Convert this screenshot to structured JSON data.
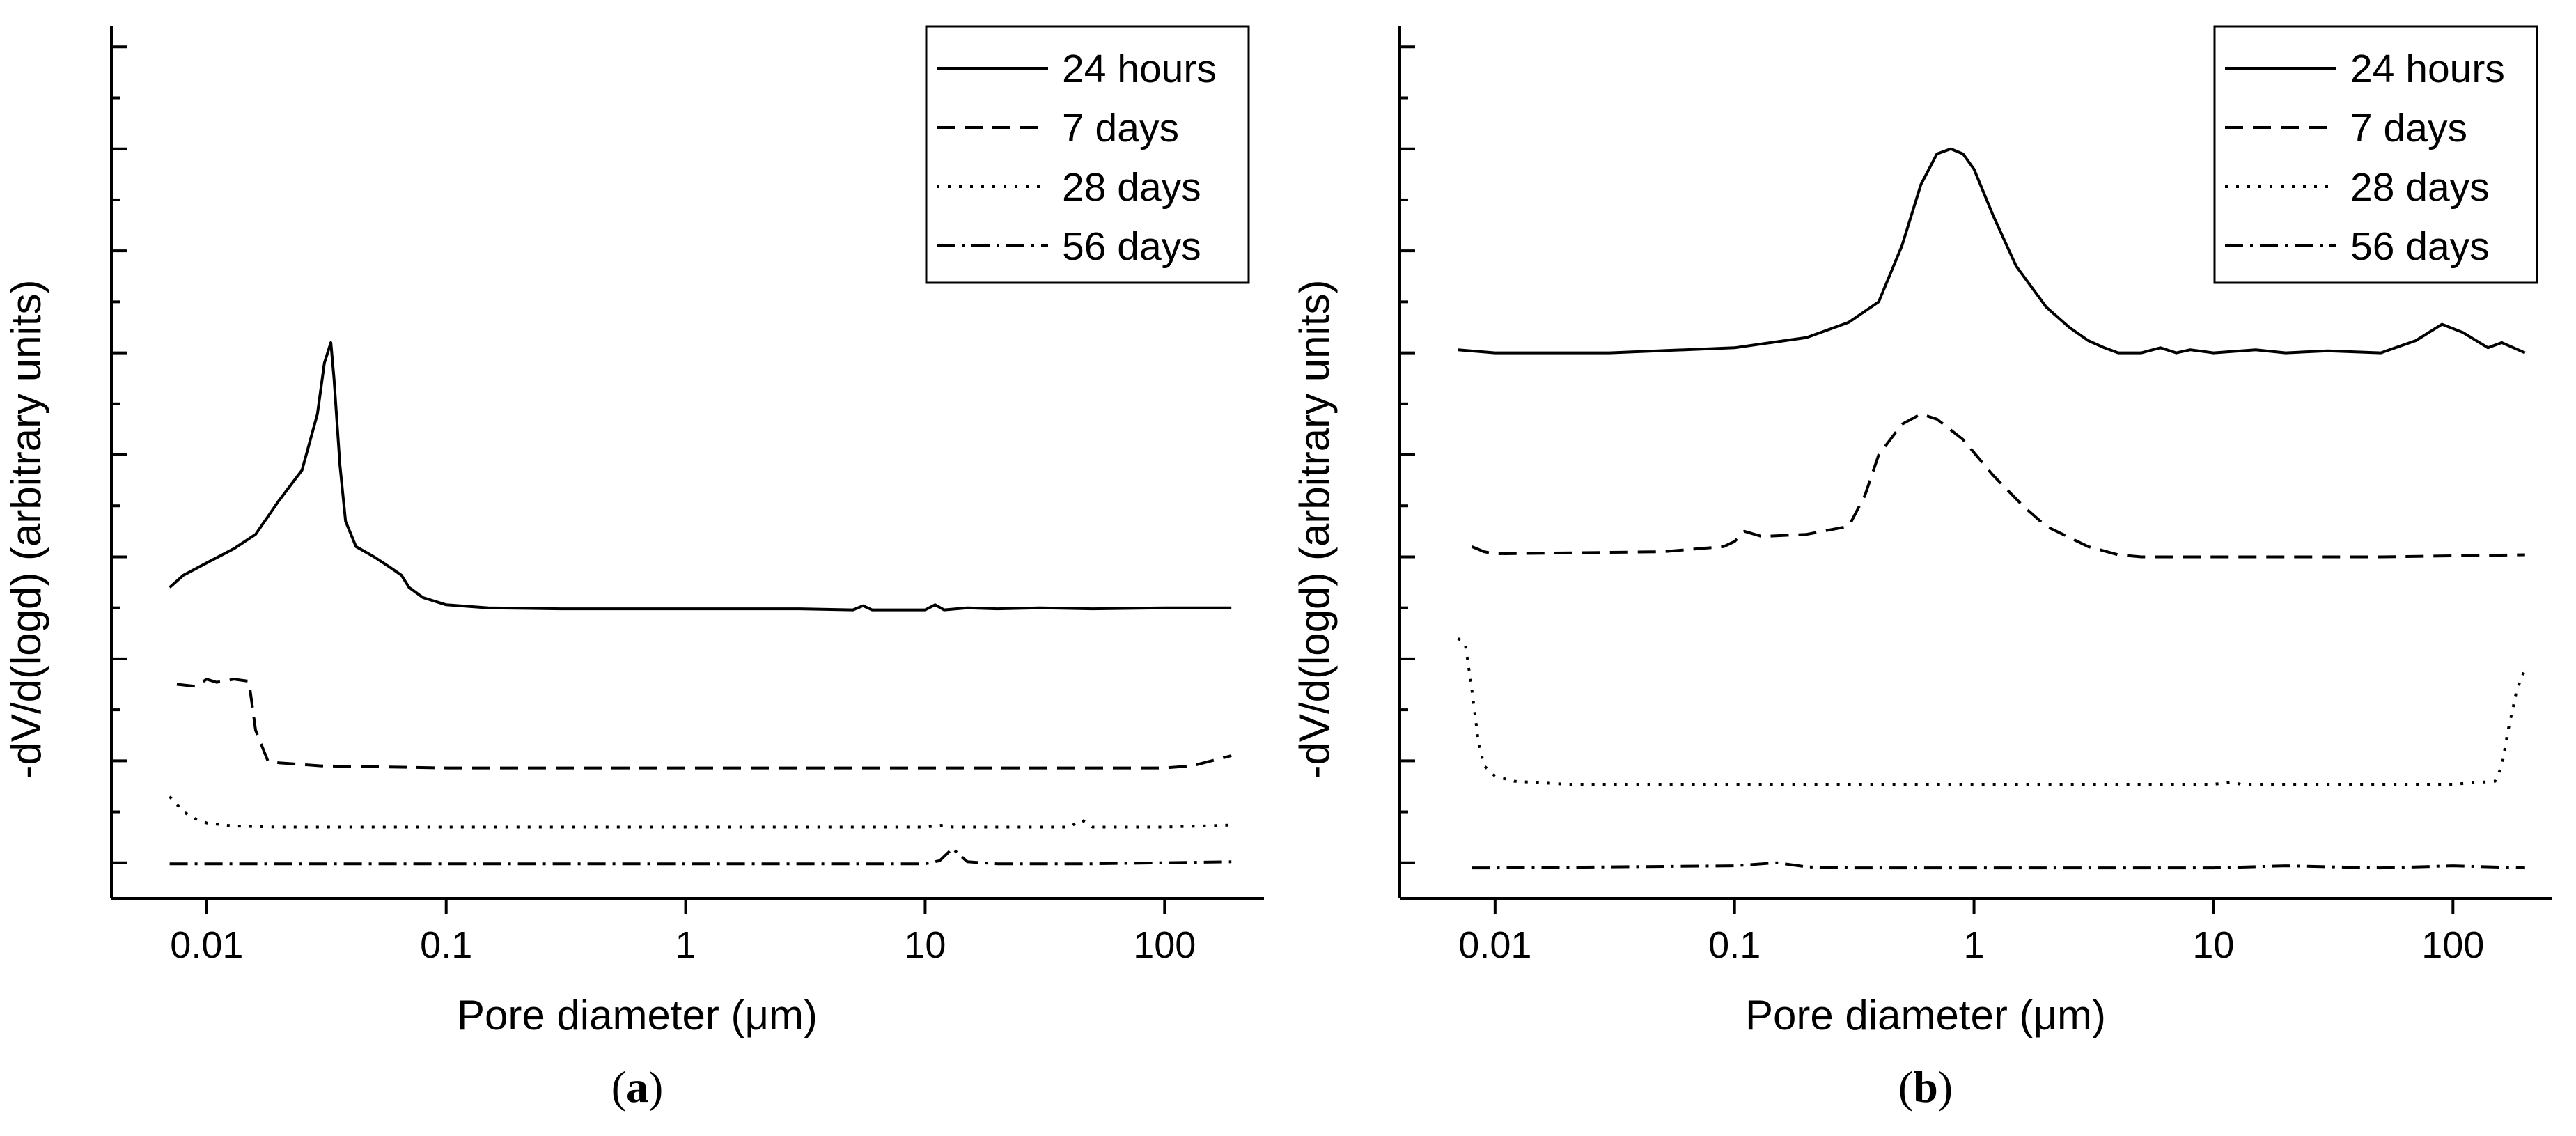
{
  "chart_data": [
    {
      "panel": "a",
      "panel_label_open": "(",
      "panel_label_letter": "a",
      "panel_label_close": ")",
      "type": "line",
      "xscale": "log",
      "xlim": [
        0.004,
        260
      ],
      "ylim": [
        -0.35,
        8.2
      ],
      "xlabel": "Pore diameter (μm)",
      "ylabel": "-dV/d(logd) (arbitrary units)",
      "x_tick_values": [
        0.01,
        0.1,
        1,
        10,
        100
      ],
      "x_tick_labels": [
        "0.01",
        "0.1",
        "1",
        "10",
        "100"
      ],
      "y_ticks": [
        0,
        1,
        2,
        3,
        4,
        5,
        6,
        7,
        8
      ],
      "legend_position": "top-right",
      "series": [
        {
          "name": "24 hours",
          "style": "solid",
          "x": [
            0.007,
            0.008,
            0.01,
            0.013,
            0.016,
            0.02,
            0.025,
            0.029,
            0.031,
            0.033,
            0.034,
            0.036,
            0.038,
            0.042,
            0.05,
            0.058,
            0.065,
            0.07,
            0.08,
            0.1,
            0.15,
            0.3,
            1,
            3,
            5,
            5.5,
            6,
            10,
            11,
            12,
            15,
            20,
            30,
            50,
            100,
            190
          ],
          "y": [
            2.7,
            2.82,
            2.94,
            3.08,
            3.22,
            3.55,
            3.85,
            4.4,
            4.9,
            5.1,
            4.75,
            3.9,
            3.35,
            3.1,
            3.0,
            2.9,
            2.82,
            2.7,
            2.6,
            2.53,
            2.5,
            2.49,
            2.49,
            2.49,
            2.48,
            2.52,
            2.48,
            2.48,
            2.53,
            2.48,
            2.5,
            2.49,
            2.5,
            2.49,
            2.5,
            2.5
          ]
        },
        {
          "name": "7 days",
          "style": "dashed",
          "x": [
            0.0075,
            0.009,
            0.01,
            0.011,
            0.013,
            0.015,
            0.016,
            0.018,
            0.02,
            0.03,
            0.1,
            1,
            10,
            100,
            130,
            190
          ],
          "y": [
            1.75,
            1.73,
            1.8,
            1.77,
            1.8,
            1.78,
            1.3,
            1.0,
            0.98,
            0.95,
            0.93,
            0.93,
            0.93,
            0.93,
            0.95,
            1.05
          ]
        },
        {
          "name": "28 days",
          "style": "dotted",
          "x": [
            0.007,
            0.008,
            0.009,
            0.01,
            0.013,
            0.02,
            0.1,
            1,
            10,
            12,
            13,
            20,
            40,
            45,
            50,
            100,
            190
          ],
          "y": [
            0.65,
            0.5,
            0.43,
            0.39,
            0.36,
            0.35,
            0.35,
            0.35,
            0.35,
            0.37,
            0.35,
            0.35,
            0.35,
            0.42,
            0.35,
            0.35,
            0.37
          ]
        },
        {
          "name": "56 days",
          "style": "dashdot",
          "x": [
            0.007,
            0.01,
            0.1,
            1,
            10,
            11.5,
            13,
            15,
            20,
            50,
            100,
            190
          ],
          "y": [
            -0.01,
            -0.01,
            -0.01,
            -0.01,
            -0.01,
            0.02,
            0.14,
            0.01,
            -0.01,
            -0.01,
            0.0,
            0.01
          ]
        }
      ]
    },
    {
      "panel": "b",
      "panel_label_open": "(",
      "panel_label_letter": "b",
      "panel_label_close": ")",
      "type": "line",
      "xscale": "log",
      "xlim": [
        0.004,
        260
      ],
      "ylim": [
        -0.35,
        8.2
      ],
      "xlabel": "Pore diameter (μm)",
      "ylabel": "-dV/d(logd) (arbitrary units)",
      "x_tick_values": [
        0.01,
        0.1,
        1,
        10,
        100
      ],
      "x_tick_labels": [
        "0.01",
        "0.1",
        "1",
        "10",
        "100"
      ],
      "y_ticks": [
        0,
        1,
        2,
        3,
        4,
        5,
        6,
        7,
        8
      ],
      "legend_position": "top-right",
      "series": [
        {
          "name": "24 hours",
          "style": "solid",
          "x": [
            0.007,
            0.01,
            0.03,
            0.1,
            0.2,
            0.3,
            0.4,
            0.5,
            0.6,
            0.7,
            0.8,
            0.9,
            1.0,
            1.2,
            1.5,
            2.0,
            2.5,
            3.0,
            3.5,
            4.0,
            5,
            6,
            7,
            8,
            10,
            15,
            20,
            30,
            50,
            70,
            90,
            110,
            140,
            160,
            200
          ],
          "y": [
            5.03,
            5.0,
            5.0,
            5.05,
            5.15,
            5.3,
            5.5,
            6.05,
            6.65,
            6.95,
            7.0,
            6.95,
            6.8,
            6.35,
            5.85,
            5.45,
            5.25,
            5.12,
            5.05,
            5.0,
            5.0,
            5.05,
            5.0,
            5.03,
            5.0,
            5.03,
            5.0,
            5.02,
            5.0,
            5.12,
            5.28,
            5.2,
            5.05,
            5.1,
            5.0
          ]
        },
        {
          "name": "7 days",
          "style": "dashed",
          "x": [
            0.008,
            0.009,
            0.01,
            0.05,
            0.09,
            0.1,
            0.11,
            0.13,
            0.2,
            0.3,
            0.35,
            0.4,
            0.5,
            0.6,
            0.7,
            0.9,
            1.2,
            1.6,
            2.0,
            3.0,
            4.0,
            5,
            10,
            20,
            50,
            100,
            200
          ],
          "y": [
            3.1,
            3.05,
            3.03,
            3.05,
            3.1,
            3.15,
            3.25,
            3.2,
            3.22,
            3.3,
            3.6,
            4.0,
            4.3,
            4.4,
            4.35,
            4.15,
            3.8,
            3.5,
            3.3,
            3.1,
            3.02,
            3.0,
            3.0,
            3.0,
            3.0,
            3.01,
            3.02
          ]
        },
        {
          "name": "28 days",
          "style": "dotted",
          "x": [
            0.007,
            0.0075,
            0.008,
            0.0085,
            0.009,
            0.01,
            0.012,
            0.02,
            0.1,
            1,
            10,
            12,
            13,
            20,
            50,
            100,
            150,
            160,
            170,
            185,
            200
          ],
          "y": [
            2.2,
            2.15,
            1.7,
            1.2,
            0.95,
            0.85,
            0.8,
            0.77,
            0.77,
            0.77,
            0.77,
            0.79,
            0.77,
            0.77,
            0.77,
            0.77,
            0.8,
            0.95,
            1.3,
            1.7,
            1.9
          ]
        },
        {
          "name": "56 days",
          "style": "dashdot",
          "x": [
            0.008,
            0.01,
            0.1,
            0.15,
            0.2,
            0.3,
            1,
            10,
            20,
            50,
            100,
            200
          ],
          "y": [
            -0.05,
            -0.05,
            -0.03,
            0.0,
            -0.04,
            -0.05,
            -0.05,
            -0.05,
            -0.03,
            -0.05,
            -0.03,
            -0.05
          ]
        }
      ]
    }
  ]
}
